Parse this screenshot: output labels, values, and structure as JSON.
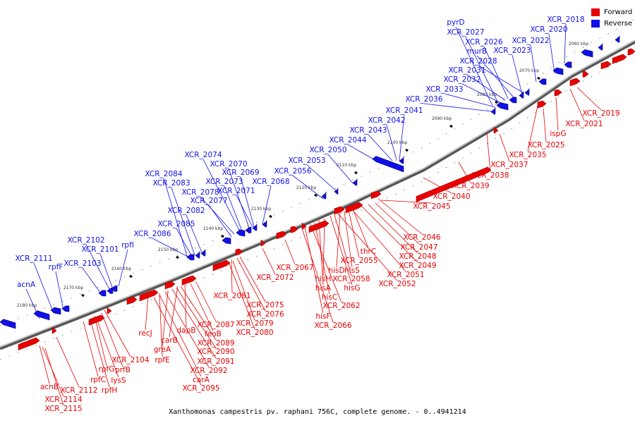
{
  "legend": {
    "forward_label": "Forward",
    "reverse_label": "Reverse",
    "forward_color": "#e80000",
    "reverse_color": "#1010e8"
  },
  "caption": "Xanthomonas campestris pv. raphani 756C, complete genome. - 0..4941214",
  "scale_labels": [
    "2060 kbp",
    "2070 kbp",
    "2080 kbp",
    "2090 kbp",
    "2100 kbp",
    "2110 kbp",
    "2120 kbp",
    "2130 kbp",
    "2140 kbp",
    "2150 kbp",
    "2160 kbp",
    "2170 kbp",
    "2180 kbp"
  ],
  "reverse_labels": [
    "XCR_2018",
    "XCR_2020",
    "pyrD",
    "XCR_2022",
    "XCR_2027",
    "XCR_2026",
    "XCR_2023",
    "murB",
    "XCR_2028",
    "XCR_2031",
    "XCR_2032",
    "XCR_2033",
    "XCR_2036",
    "XCR_2041",
    "XCR_2042",
    "XCR_2043",
    "XCR_2044",
    "XCR_2050",
    "XCR_2053",
    "XCR_2056",
    "XCR_2068",
    "XCR_2074",
    "XCR_2070",
    "XCR_2084",
    "XCR_2069",
    "XCR_2083",
    "XCR_2073",
    "XCR_2071",
    "XCR_2078",
    "XCR_2077",
    "XCR_2082",
    "XCR_2085",
    "XCR_2086",
    "XCR_2102",
    "XCR_2101",
    "rpfI",
    "XCR_2111",
    "rpfF",
    "XCR_2103",
    "acnA"
  ],
  "forward_labels": [
    "XCR_2019",
    "XCR_2021",
    "ispG",
    "XCR_2025",
    "XCR_2035",
    "XCR_2037",
    "XCR_2038",
    "XCR_2039",
    "XCR_2040",
    "XCR_2045",
    "XCR_2046",
    "XCR_2047",
    "XCR_2048",
    "XCR_2049",
    "thrC",
    "XCR_2051",
    "XCR_2055",
    "hisS",
    "hisD",
    "XCR_2052",
    "XCR_2058",
    "hisH",
    "hisG",
    "hisA",
    "hisC",
    "XCR_2062",
    "hisF",
    "XCR_2066",
    "XCR_2067",
    "XCR_2072",
    "XCR_2081",
    "XCR_2075",
    "XCR_2076",
    "XCR_2079",
    "XCR_2080",
    "XCR_2087",
    "feoB",
    "dapB",
    "XCR_2089",
    "XCR_2090",
    "carB",
    "XCR_2091",
    "greA",
    "XCR_2092",
    "rpfE",
    "carA",
    "recJ",
    "XCR_2095",
    "XCR_2104",
    "prfB",
    "rpfG",
    "lysS",
    "rpfC",
    "rpfH",
    "acnB",
    "XCR_2112",
    "XCR_2114",
    "XCR_2115"
  ]
}
